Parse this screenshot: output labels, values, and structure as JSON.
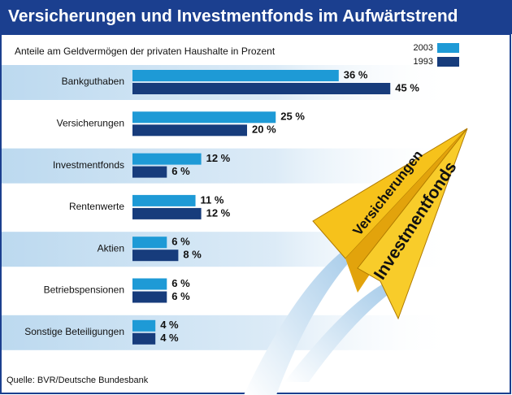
{
  "chart_data": {
    "type": "bar",
    "orientation": "horizontal",
    "title": "Versicherungen und Investmentfonds im Aufwärtstrend",
    "subtitle": "Anteile am Geldvermögen der privaten Haushalte in Prozent",
    "source": "Quelle: BVR/Deutsche Bundesbank",
    "annotations": [
      "Versicherungen",
      "Investmentfonds"
    ],
    "categories": [
      "Bankguthaben",
      "Versicherungen",
      "Investmentfonds",
      "Rentenwerte",
      "Aktien",
      "Betriebspensionen",
      "Sonstige Beteiligungen"
    ],
    "series": [
      {
        "name": "2003",
        "color": "#1e9ad6",
        "values": [
          36,
          25,
          12,
          11,
          6,
          6,
          4
        ],
        "value_labels": [
          "36 %",
          "25 %",
          "12 %",
          "11 %",
          "6 %",
          "6 %",
          "4 %"
        ]
      },
      {
        "name": "1993",
        "color": "#173c7c",
        "values": [
          45,
          20,
          6,
          12,
          8,
          6,
          4
        ],
        "value_labels": [
          "45 %",
          "20 %",
          "6 %",
          "12 %",
          "8 %",
          "6 %",
          "4 %"
        ]
      }
    ]
  }
}
